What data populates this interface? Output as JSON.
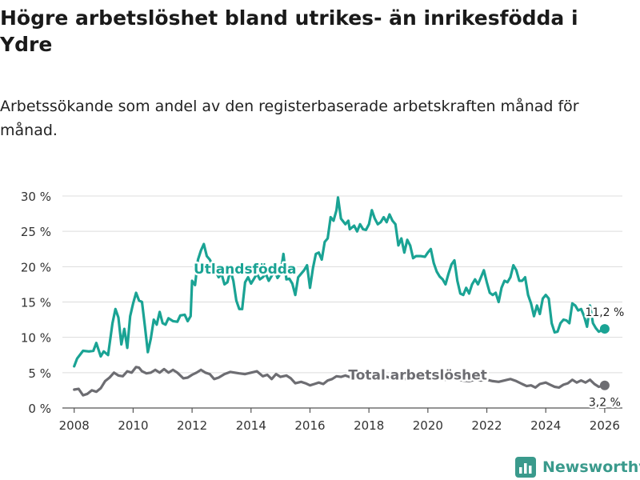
{
  "header": {
    "title": "Högre arbetslöshet bland utrikes- än inrikesfödda i Ydre",
    "subtitle": "Arbetssökande som andel av den registerbaserade arbetskraften månad för månad."
  },
  "brand": {
    "name": "Newsworthy"
  },
  "colors": {
    "utlandsfodda": "#1aa394",
    "total": "#6d6d72",
    "grid": "#dcdcdc",
    "axis": "#555555",
    "brand": "#3a9a8c"
  },
  "chart_data": {
    "type": "line",
    "title": "Högre arbetslöshet bland utrikes- än inrikesfödda i Ydre",
    "xlabel": "",
    "ylabel": "",
    "xlim": [
      2007.6,
      2026.6
    ],
    "ylim": [
      0,
      30
    ],
    "x_ticks": [
      2008,
      2010,
      2012,
      2014,
      2016,
      2018,
      2020,
      2022,
      2024,
      2026
    ],
    "x_tick_labels": [
      "2008",
      "2010",
      "2012",
      "2014",
      "2016",
      "2018",
      "2020",
      "2022",
      "2024",
      "2026"
    ],
    "y_ticks": [
      0,
      5,
      10,
      15,
      20,
      25,
      30
    ],
    "y_tick_labels": [
      "0 %",
      "5 %",
      "10 %",
      "15 %",
      "20 %",
      "25 %",
      "30 %"
    ],
    "grid": true,
    "series": [
      {
        "name": "Utlandsfödda",
        "label": "Utlandsfödda",
        "end_label": "11,2 %",
        "color": "#1aa394",
        "points": [
          [
            2008.0,
            5.9
          ],
          [
            2008.1,
            7.0
          ],
          [
            2008.3,
            8.1
          ],
          [
            2008.5,
            8.0
          ],
          [
            2008.65,
            8.1
          ],
          [
            2008.75,
            9.2
          ],
          [
            2008.9,
            7.3
          ],
          [
            2009.0,
            8.0
          ],
          [
            2009.15,
            7.5
          ],
          [
            2009.3,
            12.0
          ],
          [
            2009.4,
            14.0
          ],
          [
            2009.5,
            12.8
          ],
          [
            2009.6,
            9.0
          ],
          [
            2009.7,
            11.2
          ],
          [
            2009.8,
            8.5
          ],
          [
            2009.9,
            13.0
          ],
          [
            2010.0,
            14.8
          ],
          [
            2010.1,
            16.3
          ],
          [
            2010.2,
            15.2
          ],
          [
            2010.3,
            15.0
          ],
          [
            2010.4,
            11.5
          ],
          [
            2010.5,
            7.9
          ],
          [
            2010.6,
            9.8
          ],
          [
            2010.7,
            12.5
          ],
          [
            2010.8,
            11.8
          ],
          [
            2010.9,
            13.6
          ],
          [
            2011.0,
            12.0
          ],
          [
            2011.1,
            11.8
          ],
          [
            2011.2,
            12.7
          ],
          [
            2011.35,
            12.3
          ],
          [
            2011.5,
            12.2
          ],
          [
            2011.6,
            13.1
          ],
          [
            2011.75,
            13.2
          ],
          [
            2011.85,
            12.3
          ],
          [
            2011.95,
            13.0
          ],
          [
            2012.0,
            18.0
          ],
          [
            2012.1,
            17.4
          ],
          [
            2012.2,
            21.0
          ],
          [
            2012.3,
            22.3
          ],
          [
            2012.4,
            23.2
          ],
          [
            2012.5,
            21.5
          ],
          [
            2012.6,
            21.0
          ],
          [
            2012.75,
            19.8
          ],
          [
            2012.9,
            18.5
          ],
          [
            2013.0,
            19.0
          ],
          [
            2013.1,
            17.5
          ],
          [
            2013.2,
            17.8
          ],
          [
            2013.3,
            19.5
          ],
          [
            2013.4,
            18.0
          ],
          [
            2013.5,
            15.2
          ],
          [
            2013.6,
            14.0
          ],
          [
            2013.7,
            14.0
          ],
          [
            2013.8,
            17.8
          ],
          [
            2013.9,
            18.5
          ],
          [
            2014.0,
            17.6
          ],
          [
            2014.1,
            18.3
          ],
          [
            2014.2,
            19.0
          ],
          [
            2014.3,
            18.2
          ],
          [
            2014.4,
            18.5
          ],
          [
            2014.5,
            19.0
          ],
          [
            2014.6,
            18.0
          ],
          [
            2014.7,
            18.7
          ],
          [
            2014.8,
            19.5
          ],
          [
            2014.9,
            18.4
          ],
          [
            2015.0,
            19.0
          ],
          [
            2015.1,
            21.8
          ],
          [
            2015.2,
            18.2
          ],
          [
            2015.3,
            18.3
          ],
          [
            2015.4,
            17.6
          ],
          [
            2015.5,
            16.0
          ],
          [
            2015.6,
            18.5
          ],
          [
            2015.7,
            19.0
          ],
          [
            2015.8,
            19.5
          ],
          [
            2015.9,
            20.2
          ],
          [
            2016.0,
            17.0
          ],
          [
            2016.1,
            19.8
          ],
          [
            2016.2,
            21.8
          ],
          [
            2016.3,
            22.0
          ],
          [
            2016.4,
            21.0
          ],
          [
            2016.5,
            23.5
          ],
          [
            2016.6,
            24.0
          ],
          [
            2016.7,
            27.0
          ],
          [
            2016.8,
            26.5
          ],
          [
            2016.9,
            28.0
          ],
          [
            2016.95,
            29.8
          ],
          [
            2017.05,
            26.8
          ],
          [
            2017.2,
            26.0
          ],
          [
            2017.3,
            26.5
          ],
          [
            2017.35,
            25.3
          ],
          [
            2017.5,
            25.8
          ],
          [
            2017.6,
            25.0
          ],
          [
            2017.7,
            26.0
          ],
          [
            2017.8,
            25.3
          ],
          [
            2017.9,
            25.2
          ],
          [
            2018.0,
            26.0
          ],
          [
            2018.1,
            28.0
          ],
          [
            2018.2,
            26.8
          ],
          [
            2018.3,
            26.0
          ],
          [
            2018.4,
            26.3
          ],
          [
            2018.5,
            27.0
          ],
          [
            2018.6,
            26.3
          ],
          [
            2018.7,
            27.4
          ],
          [
            2018.8,
            26.5
          ],
          [
            2018.9,
            26.0
          ],
          [
            2019.0,
            23.0
          ],
          [
            2019.1,
            24.0
          ],
          [
            2019.2,
            22.0
          ],
          [
            2019.3,
            23.8
          ],
          [
            2019.4,
            23.0
          ],
          [
            2019.5,
            21.2
          ],
          [
            2019.6,
            21.5
          ],
          [
            2019.75,
            21.5
          ],
          [
            2019.9,
            21.4
          ],
          [
            2020.0,
            22.0
          ],
          [
            2020.1,
            22.5
          ],
          [
            2020.2,
            20.5
          ],
          [
            2020.3,
            19.3
          ],
          [
            2020.4,
            18.6
          ],
          [
            2020.5,
            18.2
          ],
          [
            2020.6,
            17.5
          ],
          [
            2020.7,
            19.0
          ],
          [
            2020.8,
            20.3
          ],
          [
            2020.9,
            20.9
          ],
          [
            2021.0,
            18.0
          ],
          [
            2021.1,
            16.2
          ],
          [
            2021.2,
            16.0
          ],
          [
            2021.3,
            17.0
          ],
          [
            2021.4,
            16.2
          ],
          [
            2021.5,
            17.5
          ],
          [
            2021.6,
            18.2
          ],
          [
            2021.7,
            17.5
          ],
          [
            2021.8,
            18.5
          ],
          [
            2021.9,
            19.5
          ],
          [
            2022.0,
            17.8
          ],
          [
            2022.1,
            16.3
          ],
          [
            2022.2,
            16.0
          ],
          [
            2022.3,
            16.3
          ],
          [
            2022.4,
            15.0
          ],
          [
            2022.5,
            17.0
          ],
          [
            2022.6,
            18.0
          ],
          [
            2022.7,
            17.8
          ],
          [
            2022.8,
            18.5
          ],
          [
            2022.9,
            20.2
          ],
          [
            2023.0,
            19.5
          ],
          [
            2023.1,
            18.0
          ],
          [
            2023.2,
            18.0
          ],
          [
            2023.3,
            18.5
          ],
          [
            2023.4,
            16.0
          ],
          [
            2023.5,
            14.8
          ],
          [
            2023.6,
            13.0
          ],
          [
            2023.7,
            14.5
          ],
          [
            2023.8,
            13.3
          ],
          [
            2023.9,
            15.5
          ],
          [
            2024.0,
            16.0
          ],
          [
            2024.1,
            15.5
          ],
          [
            2024.2,
            12.0
          ],
          [
            2024.3,
            10.7
          ],
          [
            2024.4,
            10.8
          ],
          [
            2024.5,
            12.0
          ],
          [
            2024.6,
            12.5
          ],
          [
            2024.7,
            12.4
          ],
          [
            2024.8,
            12.0
          ],
          [
            2024.9,
            14.8
          ],
          [
            2025.0,
            14.5
          ],
          [
            2025.1,
            13.8
          ],
          [
            2025.2,
            14.0
          ],
          [
            2025.3,
            13.0
          ],
          [
            2025.4,
            11.5
          ],
          [
            2025.5,
            14.5
          ],
          [
            2025.6,
            12.0
          ],
          [
            2025.7,
            11.3
          ],
          [
            2025.8,
            10.8
          ],
          [
            2026.0,
            11.2
          ]
        ]
      },
      {
        "name": "Total arbetslöshet",
        "label": "Total arbetslöshet",
        "end_label": "3,2 %",
        "color": "#6d6d72",
        "points": [
          [
            2008.0,
            2.6
          ],
          [
            2008.15,
            2.7
          ],
          [
            2008.3,
            1.8
          ],
          [
            2008.45,
            2.0
          ],
          [
            2008.6,
            2.5
          ],
          [
            2008.75,
            2.3
          ],
          [
            2008.9,
            2.8
          ],
          [
            2009.05,
            3.8
          ],
          [
            2009.2,
            4.3
          ],
          [
            2009.35,
            5.0
          ],
          [
            2009.5,
            4.6
          ],
          [
            2009.65,
            4.5
          ],
          [
            2009.8,
            5.2
          ],
          [
            2009.95,
            5.0
          ],
          [
            2010.1,
            5.8
          ],
          [
            2010.2,
            5.7
          ],
          [
            2010.3,
            5.2
          ],
          [
            2010.45,
            4.9
          ],
          [
            2010.6,
            5.0
          ],
          [
            2010.75,
            5.4
          ],
          [
            2010.9,
            5.0
          ],
          [
            2011.05,
            5.5
          ],
          [
            2011.2,
            5.0
          ],
          [
            2011.35,
            5.4
          ],
          [
            2011.5,
            5.0
          ],
          [
            2011.7,
            4.2
          ],
          [
            2011.85,
            4.3
          ],
          [
            2012.0,
            4.7
          ],
          [
            2012.15,
            5.0
          ],
          [
            2012.3,
            5.4
          ],
          [
            2012.45,
            5.0
          ],
          [
            2012.6,
            4.8
          ],
          [
            2012.75,
            4.1
          ],
          [
            2012.9,
            4.3
          ],
          [
            2013.1,
            4.8
          ],
          [
            2013.3,
            5.1
          ],
          [
            2013.45,
            5.0
          ],
          [
            2013.6,
            4.9
          ],
          [
            2013.8,
            4.8
          ],
          [
            2014.0,
            5.0
          ],
          [
            2014.2,
            5.2
          ],
          [
            2014.4,
            4.5
          ],
          [
            2014.55,
            4.7
          ],
          [
            2014.7,
            4.1
          ],
          [
            2014.85,
            4.8
          ],
          [
            2015.0,
            4.4
          ],
          [
            2015.2,
            4.6
          ],
          [
            2015.35,
            4.2
          ],
          [
            2015.5,
            3.5
          ],
          [
            2015.7,
            3.7
          ],
          [
            2015.85,
            3.5
          ],
          [
            2016.0,
            3.2
          ],
          [
            2016.15,
            3.4
          ],
          [
            2016.3,
            3.6
          ],
          [
            2016.45,
            3.4
          ],
          [
            2016.6,
            3.9
          ],
          [
            2016.75,
            4.1
          ],
          [
            2016.9,
            4.5
          ],
          [
            2017.05,
            4.4
          ],
          [
            2017.2,
            4.6
          ],
          [
            2017.4,
            4.3
          ],
          [
            2017.6,
            4.4
          ],
          [
            2017.8,
            4.5
          ],
          [
            2018.0,
            4.3
          ],
          [
            2018.2,
            4.4
          ],
          [
            2018.4,
            4.3
          ],
          [
            2018.6,
            4.4
          ],
          [
            2018.8,
            4.2
          ],
          [
            2019.0,
            4.3
          ],
          [
            2019.2,
            4.1
          ],
          [
            2019.4,
            4.2
          ],
          [
            2019.6,
            4.3
          ],
          [
            2019.8,
            4.2
          ],
          [
            2020.0,
            4.3
          ],
          [
            2020.2,
            4.1
          ],
          [
            2020.4,
            4.2
          ],
          [
            2020.6,
            4.0
          ],
          [
            2020.8,
            4.2
          ],
          [
            2021.0,
            4.0
          ],
          [
            2021.2,
            3.9
          ],
          [
            2021.4,
            3.8
          ],
          [
            2021.6,
            4.0
          ],
          [
            2021.8,
            3.9
          ],
          [
            2022.0,
            4.0
          ],
          [
            2022.2,
            3.8
          ],
          [
            2022.4,
            3.7
          ],
          [
            2022.6,
            3.9
          ],
          [
            2022.8,
            4.1
          ],
          [
            2023.0,
            3.8
          ],
          [
            2023.2,
            3.4
          ],
          [
            2023.35,
            3.1
          ],
          [
            2023.5,
            3.2
          ],
          [
            2023.65,
            2.9
          ],
          [
            2023.8,
            3.4
          ],
          [
            2024.0,
            3.6
          ],
          [
            2024.15,
            3.3
          ],
          [
            2024.3,
            3.0
          ],
          [
            2024.45,
            2.9
          ],
          [
            2024.6,
            3.3
          ],
          [
            2024.75,
            3.5
          ],
          [
            2024.9,
            4.0
          ],
          [
            2025.05,
            3.6
          ],
          [
            2025.2,
            3.9
          ],
          [
            2025.35,
            3.6
          ],
          [
            2025.5,
            4.0
          ],
          [
            2025.65,
            3.4
          ],
          [
            2025.8,
            3.0
          ],
          [
            2026.0,
            3.2
          ]
        ]
      }
    ]
  }
}
